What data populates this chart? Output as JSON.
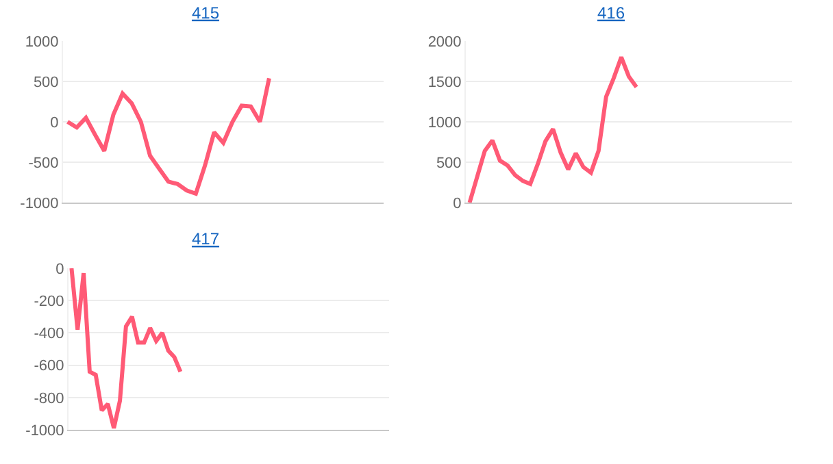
{
  "chart_data": [
    {
      "type": "line",
      "title": "415",
      "categories": [
        null,
        null,
        null,
        null,
        null,
        null,
        null,
        null,
        null,
        null,
        null,
        null,
        null,
        null,
        null,
        null,
        null,
        null,
        null,
        null,
        null,
        null,
        null,
        null,
        null,
        null,
        null,
        null,
        null,
        null,
        null,
        null,
        null,
        null,
        null
      ],
      "series": [
        {
          "color": "#ff5a76",
          "values": [
            0,
            -70,
            50,
            -160,
            -360,
            90,
            350,
            230,
            0,
            -420,
            -580,
            -740,
            -770,
            -850,
            -890,
            -540,
            -130,
            -260,
            0,
            200,
            190,
            0,
            540,
            null,
            null,
            null,
            null,
            null,
            null,
            null,
            null,
            null,
            null,
            null,
            null
          ]
        }
      ],
      "ylim": [
        -1000,
        1000
      ],
      "yticks": [
        -1000,
        -500,
        0,
        500,
        1000
      ],
      "grid": "y",
      "marker": "none",
      "line_style": "solid"
    },
    {
      "type": "line",
      "title": "416",
      "categories": [
        null,
        null,
        null,
        null,
        null,
        null,
        null,
        null,
        null,
        null,
        null,
        null,
        null,
        null,
        null,
        null,
        null,
        null,
        null,
        null,
        null,
        null,
        null,
        null,
        null,
        null,
        null,
        null,
        null,
        null,
        null,
        null,
        null,
        null,
        null,
        null,
        null,
        null,
        null,
        null,
        null,
        null,
        null
      ],
      "series": [
        {
          "color": "#ff5a76",
          "values": [
            0,
            320,
            640,
            770,
            520,
            460,
            340,
            270,
            230,
            480,
            760,
            910,
            620,
            410,
            610,
            440,
            370,
            640,
            1310,
            1540,
            1800,
            1560,
            1430,
            null,
            null,
            null,
            null,
            null,
            null,
            null,
            null,
            null,
            null,
            null,
            null,
            null,
            null,
            null,
            null,
            null,
            null,
            null,
            null
          ]
        }
      ],
      "ylim": [
        0,
        2000
      ],
      "yticks": [
        0,
        500,
        1000,
        1500,
        2000
      ],
      "grid": "y",
      "marker": "none",
      "line_style": "solid"
    },
    {
      "type": "line",
      "title": "417",
      "categories": [
        null,
        null,
        null,
        null,
        null,
        null,
        null,
        null,
        null,
        null,
        null,
        null,
        null,
        null,
        null,
        null,
        null,
        null,
        null,
        null,
        null,
        null,
        null,
        null,
        null,
        null,
        null,
        null,
        null,
        null,
        null,
        null,
        null,
        null,
        null,
        null,
        null,
        null,
        null,
        null,
        null,
        null,
        null,
        null,
        null,
        null,
        null,
        null,
        null,
        null,
        null,
        null,
        null
      ],
      "series": [
        {
          "color": "#ff5a76",
          "values": [
            0,
            -380,
            -30,
            -640,
            -660,
            -880,
            -840,
            -990,
            -820,
            -360,
            -300,
            -460,
            -460,
            -370,
            -450,
            -400,
            -510,
            -550,
            -640,
            null,
            null,
            null,
            null,
            null,
            null,
            null,
            null,
            null,
            null,
            null,
            null,
            null,
            null,
            null,
            null,
            null,
            null,
            null,
            null,
            null,
            null,
            null,
            null,
            null,
            null,
            null,
            null,
            null,
            null,
            null,
            null,
            null,
            null
          ]
        }
      ],
      "ylim": [
        -1000,
        0
      ],
      "yticks": [
        -1000,
        -800,
        -600,
        -400,
        -200,
        0
      ],
      "grid": "y",
      "marker": "none",
      "line_style": "solid"
    }
  ]
}
